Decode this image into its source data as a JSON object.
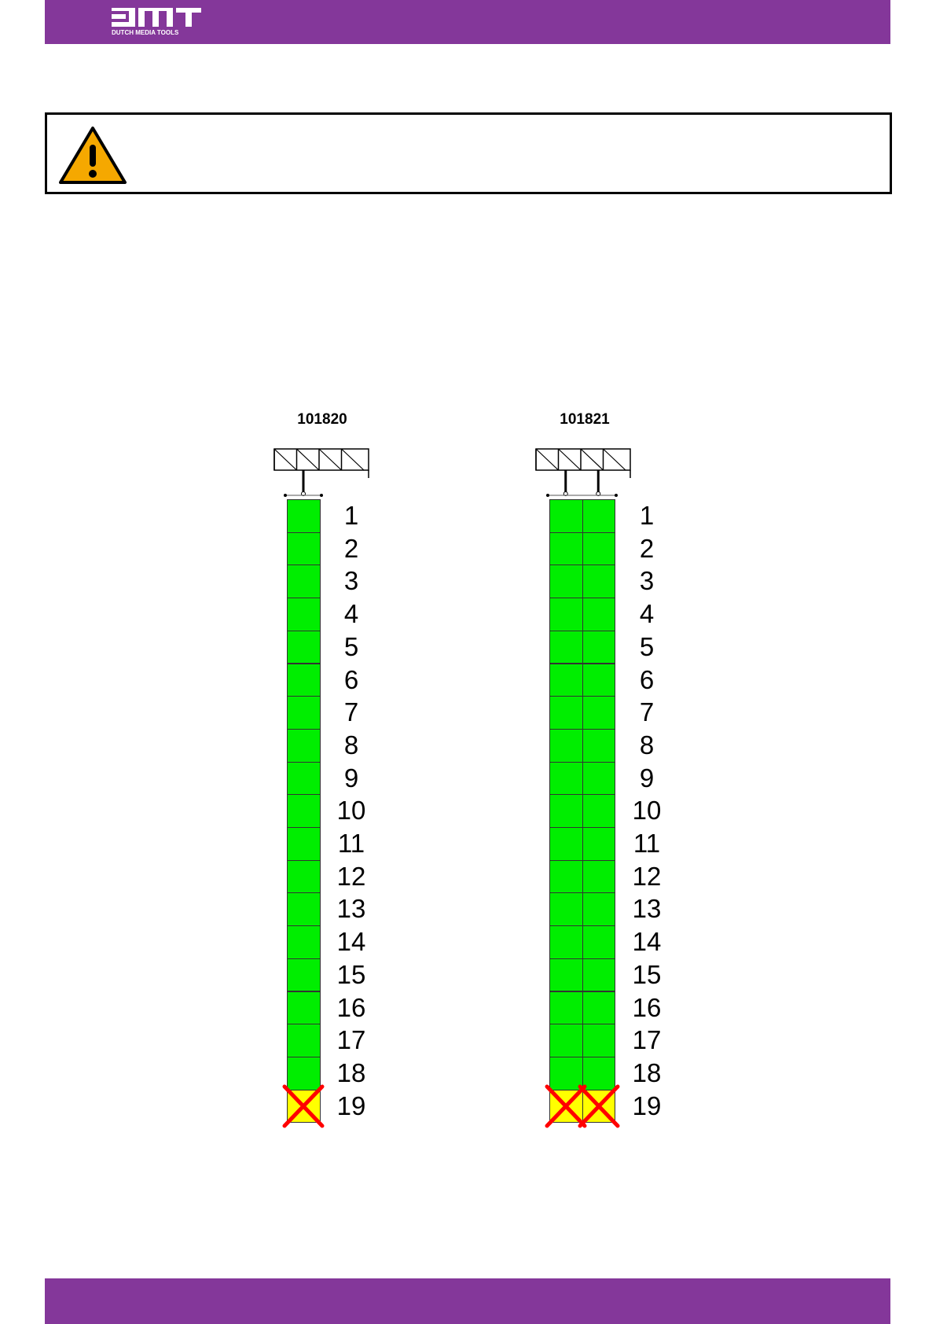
{
  "header": {
    "logo_text": "DMT",
    "logo_subtext": "DUTCH MEDIA TOOLS",
    "color": "#84379a"
  },
  "warning": {
    "icon": "warning-triangle-icon",
    "color": "#f5a800"
  },
  "diagrams": [
    {
      "title": "101820",
      "columns": 1,
      "units": [
        "1",
        "2",
        "3",
        "4",
        "5",
        "6",
        "7",
        "8",
        "9",
        "10",
        "11",
        "12",
        "13",
        "14",
        "15",
        "16",
        "17",
        "18",
        "19"
      ],
      "excluded_unit": "19"
    },
    {
      "title": "101821",
      "columns": 2,
      "units": [
        "1",
        "2",
        "3",
        "4",
        "5",
        "6",
        "7",
        "8",
        "9",
        "10",
        "11",
        "12",
        "13",
        "14",
        "15",
        "16",
        "17",
        "18",
        "19"
      ],
      "excluded_unit": "19"
    }
  ],
  "colors": {
    "allowed": "#00ee00",
    "excluded": "#ffff00",
    "cross": "#ff0000"
  }
}
